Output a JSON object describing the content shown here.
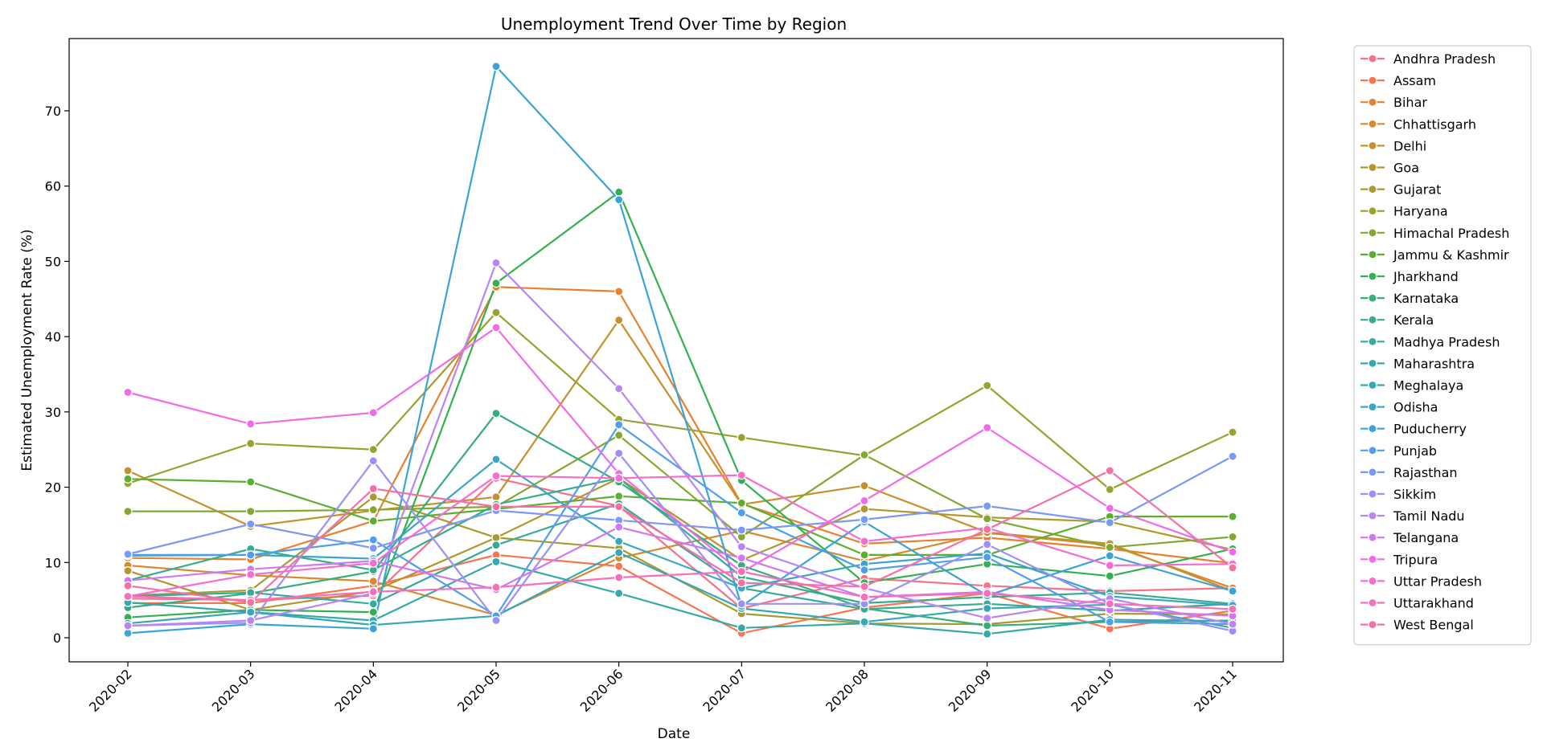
{
  "chart_data": {
    "type": "line",
    "title": "Unemployment Trend Over Time by Region",
    "xlabel": "Date",
    "ylabel": "Estimated Unemployment Rate (%)",
    "x": [
      "2020-02",
      "2020-03",
      "2020-04",
      "2020-05",
      "2020-06",
      "2020-07",
      "2020-08",
      "2020-09",
      "2020-10",
      "2020-11"
    ],
    "ylim": [
      -3.2,
      79.6
    ],
    "yticks": [
      0,
      10,
      20,
      30,
      40,
      50,
      60,
      70
    ],
    "grid": false,
    "legend_position": "outside-right",
    "series": [
      {
        "name": "Andhra Pradesh",
        "color": "#f77189",
        "values": [
          5.2,
          5.0,
          5.6,
          21.2,
          17.5,
          3.9,
          7.9,
          6.9,
          6.2,
          6.6
        ]
      },
      {
        "name": "Assam",
        "color": "#f7754f",
        "values": [
          4.6,
          4.6,
          6.9,
          11.0,
          9.5,
          0.6,
          4.0,
          5.9,
          1.2,
          3.6
        ]
      },
      {
        "name": "Bihar",
        "color": "#e7802f",
        "values": [
          10.6,
          10.4,
          15.5,
          46.6,
          46.0,
          17.8,
          12.5,
          13.3,
          11.8,
          9.9
        ]
      },
      {
        "name": "Chhattisgarh",
        "color": "#d68a2e",
        "values": [
          9.6,
          8.3,
          7.5,
          3.0,
          10.6,
          14.2,
          10.2,
          13.9,
          12.3,
          6.6
        ]
      },
      {
        "name": "Delhi",
        "color": "#c4912e",
        "values": [
          22.2,
          14.8,
          16.9,
          18.7,
          42.2,
          17.7,
          20.2,
          14.0,
          12.5,
          6.2
        ]
      },
      {
        "name": "Goa",
        "color": "#b4962e",
        "values": [
          8.9,
          3.7,
          6.2,
          13.3,
          21.2,
          10.3,
          17.1,
          16.0,
          15.4,
          11.7
        ]
      },
      {
        "name": "Gujarat",
        "color": "#a89a2f",
        "values": [
          5.6,
          6.3,
          18.7,
          13.3,
          11.9,
          3.2,
          1.9,
          1.8,
          3.2,
          3.1
        ]
      },
      {
        "name": "Haryana",
        "color": "#99a12f",
        "values": [
          20.5,
          25.8,
          25.0,
          43.2,
          29.0,
          26.6,
          24.2,
          33.5,
          19.7,
          27.3
        ]
      },
      {
        "name": "Himachal Pradesh",
        "color": "#83a831",
        "values": [
          16.8,
          16.8,
          17.0,
          17.4,
          26.9,
          13.4,
          24.3,
          15.8,
          12.0,
          13.4
        ]
      },
      {
        "name": "Jammu & Kashmir",
        "color": "#5cae31",
        "values": [
          21.1,
          20.7,
          15.5,
          17.1,
          18.8,
          17.9,
          11.0,
          11.0,
          16.1,
          16.1
        ]
      },
      {
        "name": "Jharkhand",
        "color": "#33b04f",
        "values": [
          2.7,
          3.7,
          3.4,
          47.1,
          59.2,
          20.9,
          7.3,
          9.8,
          8.2,
          11.8
        ]
      },
      {
        "name": "Karnataka",
        "color": "#34ae7a",
        "values": [
          4.0,
          5.9,
          8.8,
          29.8,
          20.7,
          9.6,
          3.9,
          1.6,
          2.1,
          2.3
        ]
      },
      {
        "name": "Kerala",
        "color": "#35ac8e",
        "values": [
          7.6,
          11.8,
          9.0,
          17.7,
          21.2,
          8.1,
          4.6,
          5.4,
          6.0,
          4.5
        ]
      },
      {
        "name": "Madhya Pradesh",
        "color": "#36aa9b",
        "values": [
          5.5,
          6.0,
          4.5,
          12.3,
          17.8,
          6.6,
          3.8,
          4.5,
          3.6,
          4.5
        ]
      },
      {
        "name": "Maharashtra",
        "color": "#37a8a8",
        "values": [
          4.7,
          3.4,
          2.3,
          10.1,
          5.9,
          1.3,
          1.9,
          0.5,
          2.4,
          2.2
        ]
      },
      {
        "name": "Meghalaya",
        "color": "#38a7b5",
        "values": [
          1.9,
          3.4,
          1.7,
          2.9,
          11.3,
          3.9,
          2.1,
          3.9,
          4.4,
          1.3
        ]
      },
      {
        "name": "Odisha",
        "color": "#3aa5c5",
        "values": [
          10.9,
          11.0,
          10.5,
          23.7,
          12.8,
          6.6,
          9.8,
          11.2,
          5.5,
          4.3
        ]
      },
      {
        "name": "Puducherry",
        "color": "#3ba3d8",
        "values": [
          0.6,
          1.8,
          1.2,
          75.9,
          58.2,
          4.2,
          15.4,
          5.6,
          10.9,
          6.2
        ]
      },
      {
        "name": "Punjab",
        "color": "#4f9eec",
        "values": [
          11.0,
          11.0,
          13.0,
          2.9,
          28.3,
          16.6,
          9.0,
          10.7,
          2.1,
          1.8
        ]
      },
      {
        "name": "Rajasthan",
        "color": "#7a98f5",
        "values": [
          11.1,
          15.1,
          11.9,
          16.9,
          15.6,
          14.3,
          15.7,
          17.5,
          15.3,
          24.1
        ]
      },
      {
        "name": "Sikkim",
        "color": "#9b90f5",
        "values": [
          1.6,
          2.0,
          23.5,
          2.3,
          24.5,
          4.5,
          4.5,
          12.4,
          4.5,
          0.9
        ]
      },
      {
        "name": "Tamil Nadu",
        "color": "#b886f4",
        "values": [
          1.6,
          2.3,
          5.9,
          49.8,
          33.1,
          12.1,
          6.6,
          2.6,
          5.2,
          1.8
        ]
      },
      {
        "name": "Telangana",
        "color": "#d277f4",
        "values": [
          7.6,
          9.1,
          10.2,
          6.4,
          14.7,
          10.6,
          5.4,
          6.1,
          3.7,
          2.9
        ]
      },
      {
        "name": "Tripura",
        "color": "#f36ae9",
        "values": [
          32.6,
          28.4,
          29.9,
          41.2,
          21.8,
          8.7,
          18.2,
          27.9,
          17.2,
          11.4
        ]
      },
      {
        "name": "Uttar Pradesh",
        "color": "#f56dd0",
        "values": [
          5.5,
          8.4,
          9.9,
          21.5,
          21.2,
          21.6,
          12.8,
          14.6,
          9.6,
          9.8
        ]
      },
      {
        "name": "Uttarakhand",
        "color": "#f66fbb",
        "values": [
          5.5,
          5.0,
          6.1,
          6.7,
          8.0,
          8.8,
          5.4,
          5.9,
          4.5,
          3.8
        ]
      },
      {
        "name": "West Bengal",
        "color": "#f670a7",
        "values": [
          6.9,
          4.7,
          19.8,
          17.4,
          17.4,
          7.3,
          6.8,
          14.4,
          22.2,
          9.3
        ]
      }
    ]
  }
}
